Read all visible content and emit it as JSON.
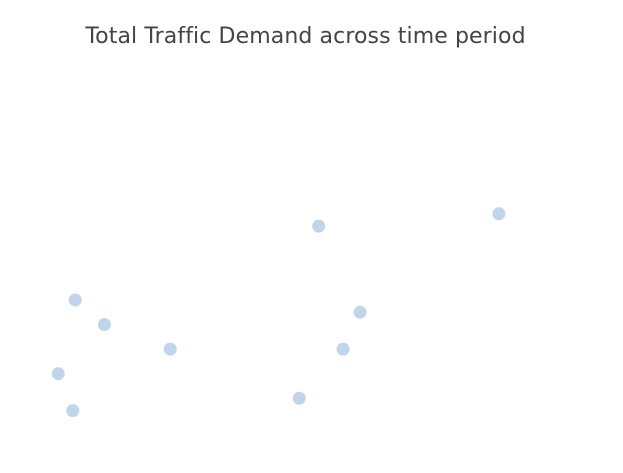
{
  "chart_data": {
    "type": "scatter",
    "title": "Total Traffic Demand across time period",
    "xlabel": "",
    "ylabel": "",
    "xlim": [
      0,
      100
    ],
    "ylim": [
      0,
      100
    ],
    "grid": false,
    "marker_color": "#c0d5ec",
    "series": [
      {
        "x": [
          2.5,
          5.5,
          6.0,
          12.0,
          25.5,
          52.0,
          56.0,
          61.0,
          64.5,
          93.0
        ],
        "y": [
          18.0,
          3.0,
          48.0,
          38.0,
          28.0,
          8.0,
          78.0,
          28.0,
          43.0,
          83.0
        ]
      }
    ]
  }
}
